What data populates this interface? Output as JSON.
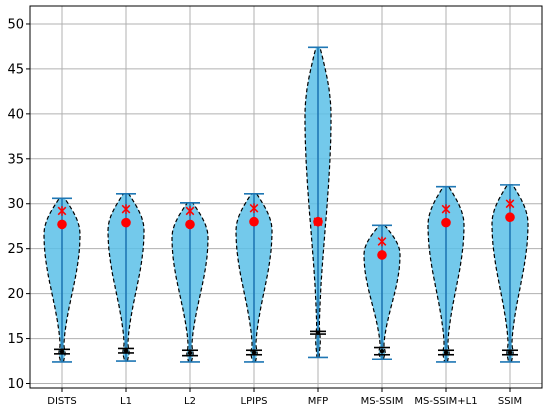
{
  "chart_data": {
    "type": "violin",
    "categories": [
      "DISTS",
      "L1",
      "L2",
      "LPIPS",
      "MFP",
      "MS-SSIM",
      "MS-SSIM+L1",
      "SSIM"
    ],
    "ylim": [
      9.5,
      52
    ],
    "yticks": [
      10,
      15,
      20,
      25,
      30,
      35,
      40,
      45,
      50
    ],
    "grid": true,
    "series": [
      {
        "category": "DISTS",
        "min": 12.4,
        "max": 30.6,
        "mean": 27.7,
        "x_marker": 29.2,
        "q_low": 13.3,
        "q_high": 13.8
      },
      {
        "category": "L1",
        "min": 12.5,
        "max": 31.1,
        "mean": 27.9,
        "x_marker": 29.4,
        "q_low": 13.4,
        "q_high": 13.9
      },
      {
        "category": "L2",
        "min": 12.4,
        "max": 30.1,
        "mean": 27.7,
        "x_marker": 29.2,
        "q_low": 13.1,
        "q_high": 13.7
      },
      {
        "category": "LPIPS",
        "min": 12.4,
        "max": 31.1,
        "mean": 28.0,
        "x_marker": 29.5,
        "q_low": 13.2,
        "q_high": 13.7
      },
      {
        "category": "MFP",
        "min": 12.9,
        "max": 47.4,
        "mean": 28.0,
        "x_marker": 28.0,
        "q_low": 15.5,
        "q_high": 15.8
      },
      {
        "category": "MS-SSIM",
        "min": 12.7,
        "max": 27.6,
        "mean": 24.3,
        "x_marker": 25.8,
        "q_low": 13.2,
        "q_high": 14.0
      },
      {
        "category": "MS-SSIM+L1",
        "min": 12.4,
        "max": 31.9,
        "mean": 27.9,
        "x_marker": 29.4,
        "q_low": 13.2,
        "q_high": 13.7
      },
      {
        "category": "SSIM",
        "min": 12.4,
        "max": 32.1,
        "mean": 28.5,
        "x_marker": 30.0,
        "q_low": 13.2,
        "q_high": 13.7
      }
    ],
    "colors": {
      "fill": "#5bc0e8",
      "outline": "#000000",
      "whisker": "#1f77b4",
      "mean_marker": "#ff0000",
      "x_marker": "#ff0000",
      "grid": "#b0b0b0"
    }
  }
}
